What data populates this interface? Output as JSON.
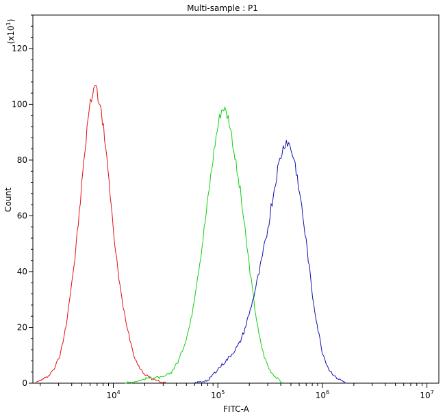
{
  "chart_data": {
    "type": "line",
    "title": "Multi-sample : P1",
    "xlabel": "FITC-A",
    "ylabel": "Count",
    "y_multiplier": "(x10",
    "y_multiplier_exp": "1",
    "y_multiplier_close": ")",
    "x_scale": "log",
    "xlim": [
      1700,
      13000000
    ],
    "ylim": [
      0,
      132
    ],
    "x_ticks": [
      {
        "value": 10000,
        "base": "10",
        "exp": "4"
      },
      {
        "value": 100000,
        "base": "10",
        "exp": "5"
      },
      {
        "value": 1000000,
        "base": "10",
        "exp": "6"
      },
      {
        "value": 10000000,
        "base": "10",
        "exp": "7"
      }
    ],
    "y_ticks": [
      0,
      20,
      40,
      60,
      80,
      100,
      120
    ],
    "grid": false,
    "series": [
      {
        "color": "#e01010",
        "points": [
          [
            1800,
            0
          ],
          [
            2000,
            1
          ],
          [
            2300,
            2
          ],
          [
            2700,
            5
          ],
          [
            3100,
            10
          ],
          [
            3500,
            20
          ],
          [
            3900,
            33
          ],
          [
            4300,
            45
          ],
          [
            4700,
            60
          ],
          [
            5100,
            75
          ],
          [
            5500,
            88
          ],
          [
            5800,
            97
          ],
          [
            6100,
            101
          ],
          [
            6400,
            105
          ],
          [
            6700,
            108
          ],
          [
            7000,
            104
          ],
          [
            7300,
            102
          ],
          [
            7600,
            98
          ],
          [
            8000,
            92
          ],
          [
            8500,
            85
          ],
          [
            9000,
            75
          ],
          [
            9500,
            63
          ],
          [
            10000,
            55
          ],
          [
            10700,
            45
          ],
          [
            11500,
            35
          ],
          [
            12500,
            27
          ],
          [
            14000,
            18
          ],
          [
            15500,
            11
          ],
          [
            17000,
            7
          ],
          [
            19000,
            4
          ],
          [
            22000,
            2
          ],
          [
            26000,
            1
          ],
          [
            32000,
            0
          ]
        ]
      },
      {
        "color": "#10d010",
        "points": [
          [
            13000,
            0
          ],
          [
            18000,
            1
          ],
          [
            22000,
            2
          ],
          [
            26000,
            2
          ],
          [
            30000,
            2
          ],
          [
            36000,
            4
          ],
          [
            42000,
            8
          ],
          [
            48000,
            14
          ],
          [
            55000,
            22
          ],
          [
            62000,
            35
          ],
          [
            70000,
            48
          ],
          [
            78000,
            62
          ],
          [
            86000,
            75
          ],
          [
            94000,
            86
          ],
          [
            102000,
            94
          ],
          [
            108000,
            98
          ],
          [
            114000,
            99
          ],
          [
            120000,
            97
          ],
          [
            127000,
            95
          ],
          [
            134000,
            90
          ],
          [
            142000,
            84
          ],
          [
            152000,
            76
          ],
          [
            165000,
            68
          ],
          [
            180000,
            56
          ],
          [
            200000,
            42
          ],
          [
            220000,
            30
          ],
          [
            245000,
            18
          ],
          [
            275000,
            10
          ],
          [
            310000,
            5
          ],
          [
            360000,
            2
          ],
          [
            420000,
            0
          ]
        ]
      },
      {
        "color": "#1010b0",
        "points": [
          [
            60000,
            0
          ],
          [
            80000,
            1
          ],
          [
            100000,
            5
          ],
          [
            120000,
            8
          ],
          [
            140000,
            11
          ],
          [
            160000,
            14
          ],
          [
            180000,
            19
          ],
          [
            200000,
            25
          ],
          [
            220000,
            31
          ],
          [
            250000,
            40
          ],
          [
            290000,
            52
          ],
          [
            330000,
            65
          ],
          [
            370000,
            76
          ],
          [
            410000,
            83
          ],
          [
            450000,
            87
          ],
          [
            490000,
            85
          ],
          [
            540000,
            80
          ],
          [
            600000,
            70
          ],
          [
            660000,
            58
          ],
          [
            730000,
            45
          ],
          [
            800000,
            32
          ],
          [
            900000,
            20
          ],
          [
            1000000,
            11
          ],
          [
            1150000,
            5
          ],
          [
            1350000,
            2
          ],
          [
            1700000,
            0
          ]
        ]
      }
    ]
  }
}
